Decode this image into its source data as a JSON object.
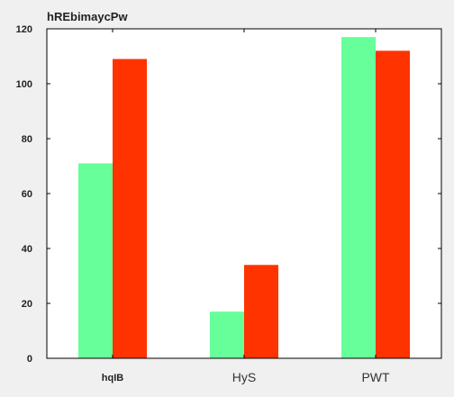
{
  "chart_data": {
    "type": "bar",
    "title": "hREbimaycPw",
    "categories": [
      "hqIB",
      "HyS",
      "PWT"
    ],
    "series": [
      {
        "values": [
          71,
          17,
          117
        ],
        "color": "#66ff99"
      },
      {
        "values": [
          109,
          34,
          112
        ],
        "color": "#ff3300"
      }
    ],
    "ylim": [
      0,
      120
    ],
    "yticks": [
      "0",
      "20",
      "40",
      "60",
      "80",
      "100",
      "120"
    ],
    "grid": false,
    "legend": "none",
    "bold_categories": [
      "hqIB"
    ]
  }
}
